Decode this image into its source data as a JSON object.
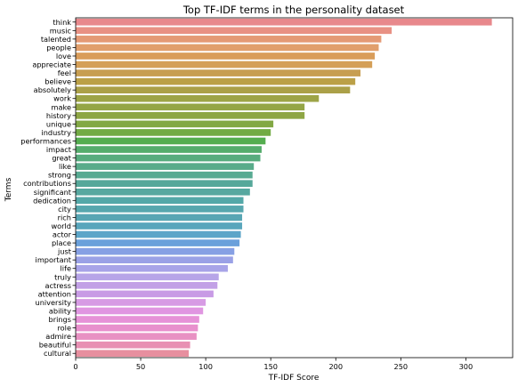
{
  "chart_data": {
    "type": "bar",
    "orientation": "horizontal",
    "title": "Top TF-IDF terms in the personality dataset",
    "xlabel": "TF-IDF Score",
    "ylabel": "Terms",
    "xlim": [
      0,
      336
    ],
    "xticks": [
      0,
      50,
      100,
      150,
      200,
      250,
      300
    ],
    "grid": false,
    "categories": [
      "think",
      "music",
      "talented",
      "people",
      "love",
      "appreciate",
      "feel",
      "believe",
      "absolutely",
      "work",
      "make",
      "history",
      "unique",
      "industry",
      "performances",
      "impact",
      "great",
      "like",
      "strong",
      "contributions",
      "significant",
      "dedication",
      "city",
      "rich",
      "world",
      "actor",
      "place",
      "just",
      "important",
      "life",
      "truly",
      "actress",
      "attention",
      "university",
      "ability",
      "brings",
      "role",
      "admire",
      "beautiful",
      "cultural"
    ],
    "values": [
      320,
      243,
      235,
      233,
      230,
      228,
      219,
      215,
      211,
      187,
      176,
      176,
      152,
      150,
      146,
      143,
      142,
      137,
      136,
      136,
      134,
      129,
      129,
      128,
      128,
      127,
      126,
      122,
      121,
      117,
      110,
      109,
      106,
      100,
      98,
      95,
      94,
      93,
      88,
      87
    ],
    "colors": [
      "#e8888c",
      "#e89184",
      "#e49a75",
      "#e19f6c",
      "#d99d5a",
      "#d49f57",
      "#c79e51",
      "#bba047",
      "#aba048",
      "#9da447",
      "#94a546",
      "#8ea644",
      "#82a844",
      "#72ab44",
      "#54ad4f",
      "#55ac6c",
      "#58ac7e",
      "#59ac8a",
      "#58aa92",
      "#56a89a",
      "#57a8a0",
      "#54a8a8",
      "#57a7ae",
      "#58a6b4",
      "#59a6bc",
      "#5ca5c8",
      "#6aa0db",
      "#86a0e4",
      "#9aa1e6",
      "#a8a4e8",
      "#b7a5e8",
      "#c2a1e6",
      "#c89be5",
      "#d79be4",
      "#e096e1",
      "#e692d7",
      "#e890cd",
      "#e891c3",
      "#e890b3",
      "#e78f9f"
    ]
  }
}
